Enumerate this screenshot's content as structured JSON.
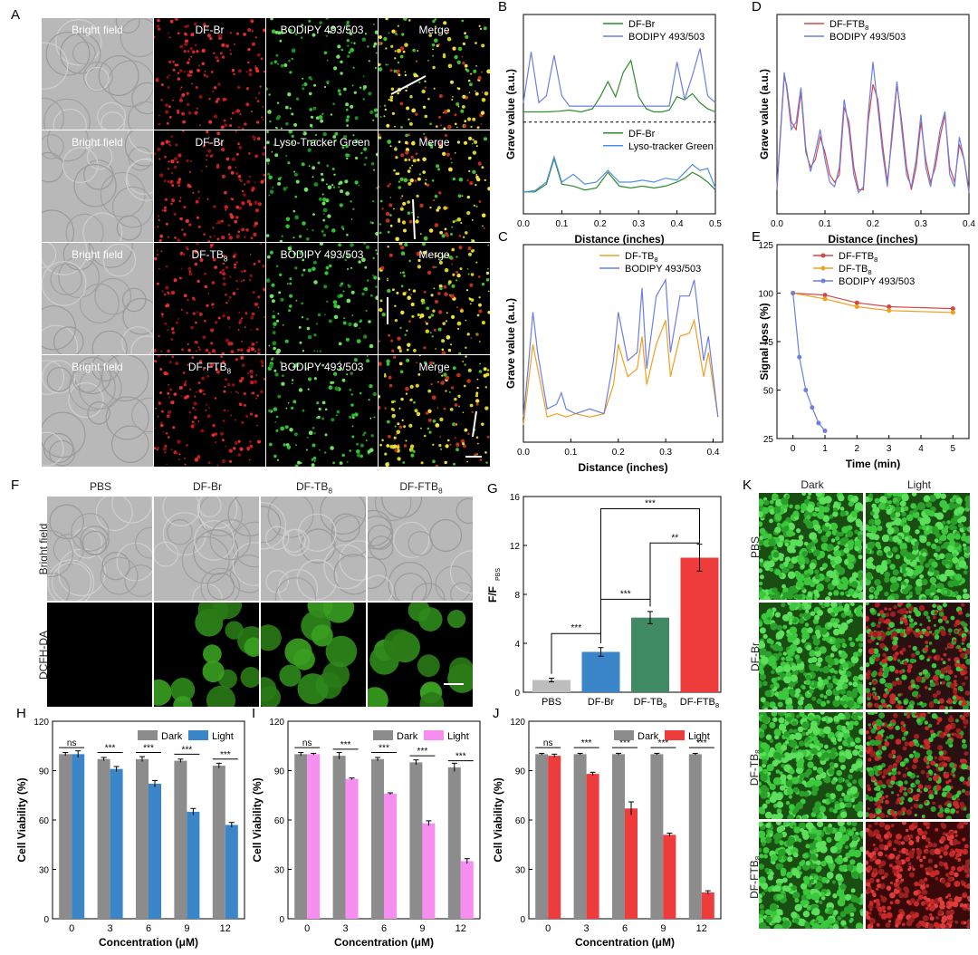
{
  "panels": {
    "A": {
      "letter": "A",
      "rows": [
        [
          "Bright field",
          "DF-Br",
          "BODIPY 493/503",
          "Merge"
        ],
        [
          "Bright field",
          "DF-Br",
          "Lyso-Tracker Green",
          "Merge"
        ],
        [
          "Bright field",
          "DF-TB8",
          "BODIPY 493/503",
          "Merge"
        ],
        [
          "Bright field",
          "DF-FTB8",
          "BODIPY 493/503",
          "Merge"
        ]
      ]
    },
    "F": {
      "letter": "F",
      "columns": [
        "PBS",
        "DF-Br",
        "DF-TB8",
        "DF-FTB8"
      ],
      "rows": [
        "Bright field",
        "DCFH-DA"
      ]
    },
    "K": {
      "letter": "K",
      "columns": [
        "Dark",
        "Light"
      ],
      "rows": [
        "PBS",
        "DF-Br",
        "DF-TB8",
        "DF-FTB8"
      ]
    }
  },
  "colors": {
    "green": "#2e8b2e",
    "blue": "#6b7fe0",
    "red": "#d64545",
    "orange": "#f0a020",
    "gray": "#808080",
    "bar_blue": "#3a86c8",
    "bar_pink": "#f78ff0",
    "bar_red": "#ee3b3b",
    "bar_teal": "#3f8a63",
    "bar_lightgray": "#bdbdbd"
  },
  "chart_data": [
    {
      "id": "B",
      "letter": "B",
      "type": "line",
      "xlabel": "Distance (inches)",
      "ylabel": "Grave value (a.u.)",
      "xlim": [
        0,
        0.5
      ],
      "xticks": [
        "0.0",
        "0.1",
        "0.2",
        "0.3",
        "0.4",
        "0.5"
      ],
      "upper_legend": [
        "DF-Br",
        "BODIPY 493/503"
      ],
      "lower_legend": [
        "DF-Br",
        "Lyso-tracker Green"
      ],
      "upper_series": [
        {
          "name": "DF-Br",
          "x": [
            0,
            0.03,
            0.06,
            0.09,
            0.12,
            0.15,
            0.18,
            0.2,
            0.22,
            0.24,
            0.26,
            0.28,
            0.3,
            0.32,
            0.34,
            0.36,
            0.38,
            0.4,
            0.42,
            0.44,
            0.46,
            0.48,
            0.5
          ],
          "y": [
            0.05,
            0.05,
            0.05,
            0.06,
            0.08,
            0.05,
            0.1,
            0.3,
            0.55,
            0.3,
            0.7,
            0.9,
            0.3,
            0.1,
            0.05,
            0.05,
            0.08,
            0.3,
            0.25,
            0.35,
            0.2,
            0.1,
            0.05
          ]
        },
        {
          "name": "BODIPY 493/503",
          "x": [
            0,
            0.02,
            0.04,
            0.06,
            0.08,
            0.1,
            0.12,
            0.15,
            0.18,
            0.2,
            0.22,
            0.25,
            0.28,
            0.3,
            0.33,
            0.36,
            0.38,
            0.4,
            0.42,
            0.44,
            0.46,
            0.48,
            0.5
          ],
          "y": [
            0.1,
            0.85,
            0.1,
            0.2,
            0.8,
            0.2,
            0.05,
            0.05,
            0.05,
            0.05,
            0.05,
            0.05,
            0.05,
            0.05,
            0.05,
            0.05,
            0.05,
            0.7,
            0.15,
            0.5,
            0.9,
            0.2,
            0.1
          ]
        }
      ],
      "lower_series": [
        {
          "name": "DF-Br",
          "x": [
            0,
            0.03,
            0.06,
            0.08,
            0.1,
            0.13,
            0.16,
            0.19,
            0.22,
            0.25,
            0.28,
            0.31,
            0.34,
            0.37,
            0.4,
            0.42,
            0.44,
            0.46,
            0.48,
            0.5
          ],
          "y": [
            0.05,
            0.05,
            0.25,
            0.9,
            0.25,
            0.2,
            0.1,
            0.15,
            0.55,
            0.2,
            0.15,
            0.2,
            0.15,
            0.2,
            0.3,
            0.4,
            0.55,
            0.45,
            0.3,
            0.1
          ]
        },
        {
          "name": "Lyso-tracker Green",
          "x": [
            0,
            0.03,
            0.06,
            0.08,
            0.1,
            0.13,
            0.16,
            0.19,
            0.22,
            0.25,
            0.28,
            0.31,
            0.34,
            0.37,
            0.4,
            0.42,
            0.44,
            0.46,
            0.48,
            0.5
          ],
          "y": [
            0.05,
            0.08,
            0.3,
            0.95,
            0.3,
            0.5,
            0.25,
            0.3,
            0.6,
            0.3,
            0.3,
            0.35,
            0.3,
            0.4,
            0.35,
            0.55,
            0.75,
            0.6,
            0.65,
            0.15
          ]
        }
      ]
    },
    {
      "id": "C",
      "letter": "C",
      "type": "line",
      "xlabel": "Distance (inches)",
      "ylabel": "Grave value (a.u.)",
      "xlim": [
        0,
        0.42
      ],
      "xticks": [
        "0.0",
        "0.1",
        "0.2",
        "0.3",
        "0.4"
      ],
      "legend": [
        "DF-TB8",
        "BODIPY 493/503"
      ],
      "series": [
        {
          "name": "DF-TB8",
          "x": [
            0,
            0.01,
            0.02,
            0.03,
            0.05,
            0.07,
            0.09,
            0.11,
            0.14,
            0.17,
            0.19,
            0.2,
            0.22,
            0.24,
            0.25,
            0.26,
            0.28,
            0.3,
            0.31,
            0.33,
            0.35,
            0.36,
            0.38,
            0.39,
            0.41
          ],
          "y": [
            0.05,
            0.3,
            0.55,
            0.4,
            0.1,
            0.12,
            0.1,
            0.12,
            0.1,
            0.12,
            0.3,
            0.55,
            0.35,
            0.4,
            0.6,
            0.3,
            0.55,
            0.7,
            0.35,
            0.6,
            0.62,
            0.7,
            0.35,
            0.5,
            0.1
          ]
        },
        {
          "name": "BODIPY 493/503",
          "x": [
            0,
            0.01,
            0.02,
            0.03,
            0.05,
            0.07,
            0.08,
            0.09,
            0.11,
            0.14,
            0.17,
            0.19,
            0.2,
            0.22,
            0.24,
            0.25,
            0.26,
            0.28,
            0.3,
            0.31,
            0.33,
            0.35,
            0.36,
            0.38,
            0.39,
            0.41
          ],
          "y": [
            0.1,
            0.4,
            0.75,
            0.5,
            0.15,
            0.18,
            0.25,
            0.15,
            0.12,
            0.15,
            0.12,
            0.45,
            0.75,
            0.45,
            0.5,
            0.9,
            0.4,
            0.85,
            0.95,
            0.5,
            0.85,
            0.85,
            0.95,
            0.45,
            0.6,
            0.1
          ]
        }
      ]
    },
    {
      "id": "D",
      "letter": "D",
      "type": "line",
      "xlabel": "Distance (inches)",
      "ylabel": "Grave value (a.u.)",
      "xlim": [
        0,
        0.4
      ],
      "xticks": [
        "0.0",
        "0.1",
        "0.2",
        "0.3",
        "0.4"
      ],
      "legend": [
        "DF-FTB8",
        "BODIPY 493/503"
      ],
      "series": [
        {
          "name": "DF-FTB8",
          "x": [
            0,
            0.01,
            0.015,
            0.02,
            0.03,
            0.04,
            0.05,
            0.06,
            0.07,
            0.08,
            0.09,
            0.1,
            0.11,
            0.12,
            0.13,
            0.14,
            0.15,
            0.16,
            0.17,
            0.18,
            0.19,
            0.2,
            0.21,
            0.22,
            0.23,
            0.24,
            0.25,
            0.26,
            0.27,
            0.28,
            0.29,
            0.3,
            0.31,
            0.32,
            0.33,
            0.34,
            0.35,
            0.36,
            0.37,
            0.38,
            0.39,
            0.4
          ],
          "y": [
            0.1,
            0.6,
            0.85,
            0.8,
            0.55,
            0.5,
            0.75,
            0.35,
            0.25,
            0.3,
            0.45,
            0.35,
            0.2,
            0.15,
            0.2,
            0.65,
            0.55,
            0.25,
            0.1,
            0.1,
            0.55,
            0.8,
            0.7,
            0.4,
            0.15,
            0.45,
            0.8,
            0.55,
            0.25,
            0.1,
            0.25,
            0.55,
            0.3,
            0.15,
            0.25,
            0.45,
            0.6,
            0.25,
            0.15,
            0.4,
            0.3,
            0.1
          ]
        },
        {
          "name": "BODIPY 493/503",
          "x": [
            0,
            0.01,
            0.015,
            0.02,
            0.03,
            0.04,
            0.05,
            0.06,
            0.07,
            0.08,
            0.09,
            0.1,
            0.11,
            0.12,
            0.13,
            0.14,
            0.15,
            0.16,
            0.17,
            0.18,
            0.19,
            0.2,
            0.21,
            0.22,
            0.23,
            0.24,
            0.25,
            0.26,
            0.27,
            0.28,
            0.29,
            0.3,
            0.31,
            0.32,
            0.33,
            0.34,
            0.35,
            0.36,
            0.37,
            0.38,
            0.39,
            0.4
          ],
          "y": [
            0.12,
            0.62,
            0.88,
            0.78,
            0.5,
            0.55,
            0.78,
            0.38,
            0.22,
            0.35,
            0.5,
            0.3,
            0.15,
            0.12,
            0.25,
            0.7,
            0.5,
            0.2,
            0.08,
            0.12,
            0.6,
            0.95,
            0.65,
            0.35,
            0.12,
            0.5,
            0.82,
            0.5,
            0.2,
            0.12,
            0.3,
            0.6,
            0.25,
            0.12,
            0.3,
            0.5,
            0.62,
            0.2,
            0.12,
            0.45,
            0.3,
            0.08
          ]
        }
      ]
    },
    {
      "id": "E",
      "letter": "E",
      "type": "line",
      "xlabel": "Time (min)",
      "ylabel": "Signal loss (%)",
      "xlim": [
        -0.5,
        5.5
      ],
      "ylim": [
        25,
        125
      ],
      "xticks": [
        "0",
        "1",
        "2",
        "3",
        "4",
        "5"
      ],
      "yticks": [
        "25",
        "50",
        "75",
        "100",
        "125"
      ],
      "legend": [
        "DF-FTB8",
        "DF-TB8",
        "BODIPY 493/503"
      ],
      "series": [
        {
          "name": "DF-FTB8",
          "x": [
            0,
            1,
            2,
            3,
            5
          ],
          "y": [
            100,
            99,
            95,
            93,
            92
          ]
        },
        {
          "name": "DF-TB8",
          "x": [
            0,
            1,
            2,
            3,
            5
          ],
          "y": [
            100,
            97,
            93,
            91,
            90
          ]
        },
        {
          "name": "BODIPY 493/503",
          "x": [
            0,
            0.2,
            0.4,
            0.6,
            0.8,
            1.0
          ],
          "y": [
            100,
            67,
            50,
            41,
            33,
            29
          ]
        }
      ]
    },
    {
      "id": "G",
      "letter": "G",
      "type": "bar",
      "ylabel": "F/F",
      "ylabel_sub": "PBS",
      "ylim": [
        0,
        16
      ],
      "yticks": [
        "0",
        "4",
        "8",
        "12",
        "16"
      ],
      "categories": [
        "PBS",
        "DF-Br",
        "DF-TB8",
        "DF-FTB8"
      ],
      "values": [
        1.0,
        3.3,
        6.1,
        11.0
      ],
      "errors": [
        0.15,
        0.35,
        0.5,
        1.1
      ],
      "significance": [
        {
          "from": 0,
          "to": 1,
          "label": "***"
        },
        {
          "from": 1,
          "to": 2,
          "label": "***"
        },
        {
          "from": 2,
          "to": 3,
          "label": "**"
        },
        {
          "from": 1,
          "to": 3,
          "label": "***"
        }
      ]
    },
    {
      "id": "H",
      "letter": "H",
      "type": "bar",
      "xlabel": "Concentration (μM)",
      "ylabel": "Cell Viability (%)",
      "ylim": [
        0,
        120
      ],
      "yticks": [
        "0",
        "30",
        "60",
        "90",
        "120"
      ],
      "categories": [
        "0",
        "3",
        "6",
        "9",
        "12"
      ],
      "legend": [
        "Dark",
        "Light"
      ],
      "series": [
        {
          "name": "Dark",
          "values": [
            100,
            97,
            97,
            96,
            93
          ],
          "errors": [
            1,
            1,
            1.5,
            1,
            1.5
          ]
        },
        {
          "name": "Light",
          "values": [
            100,
            91,
            82,
            65,
            57
          ],
          "errors": [
            2,
            1.5,
            2,
            2,
            1.5
          ]
        }
      ],
      "significance": [
        "ns",
        "***",
        "***",
        "***",
        "***"
      ]
    },
    {
      "id": "I",
      "letter": "I",
      "type": "bar",
      "xlabel": "Concentration (μM)",
      "ylabel": "Cell Viability (%)",
      "ylim": [
        0,
        120
      ],
      "yticks": [
        "0",
        "30",
        "60",
        "90",
        "120"
      ],
      "categories": [
        "0",
        "3",
        "6",
        "9",
        "12"
      ],
      "legend": [
        "Dark",
        "Light"
      ],
      "series": [
        {
          "name": "Dark",
          "values": [
            100,
            99,
            97,
            95,
            92
          ],
          "errors": [
            1,
            2,
            1,
            1.5,
            2.5
          ]
        },
        {
          "name": "Light",
          "values": [
            100,
            85,
            76,
            58,
            35
          ],
          "errors": [
            0.5,
            0.5,
            0.5,
            1.5,
            1.5
          ]
        }
      ],
      "significance": [
        "ns",
        "***",
        "***",
        "***",
        "***"
      ]
    },
    {
      "id": "J",
      "letter": "J",
      "type": "bar",
      "xlabel": "Concentration (μM)",
      "ylabel": "Cell Viability (%)",
      "ylim": [
        0,
        120
      ],
      "yticks": [
        "0",
        "30",
        "60",
        "90",
        "120"
      ],
      "categories": [
        "0",
        "3",
        "6",
        "9",
        "12"
      ],
      "legend": [
        "Dark",
        "Light"
      ],
      "series": [
        {
          "name": "Dark",
          "values": [
            100,
            100,
            100,
            100,
            100
          ],
          "errors": [
            0.5,
            0.5,
            0.5,
            0.5,
            0.5
          ]
        },
        {
          "name": "Light",
          "values": [
            99,
            88,
            67,
            51,
            16
          ],
          "errors": [
            1,
            1,
            4,
            1,
            1
          ]
        }
      ],
      "significance": [
        "ns",
        "***",
        "***",
        "***",
        "***"
      ]
    }
  ]
}
